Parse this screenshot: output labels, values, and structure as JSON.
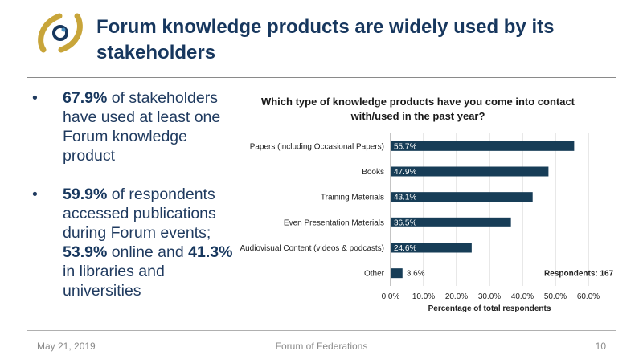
{
  "slide": {
    "title": "Forum knowledge products are widely used by its stakeholders"
  },
  "bullets": [
    {
      "bold": "67.9%",
      "text": " of stakeholders have used at least one Forum knowledge product"
    },
    {
      "bold1": "59.9%",
      "text1": " of respondents accessed publications during Forum events; ",
      "bold2": "53.9%",
      "text2": " online and ",
      "bold3": "41.3%",
      "text3": " in libraries and universities"
    }
  ],
  "footer": {
    "date": "May 21, 2019",
    "org": "Forum of Federations",
    "page": "10"
  },
  "colors": {
    "bar": "#173d57",
    "title": "#17375e",
    "logo_gold": "#c8a53a",
    "logo_navy": "#17375e"
  },
  "chart_data": {
    "type": "bar",
    "orientation": "horizontal",
    "title": "Which type of knowledge products have you come into contact with/used in the past year?",
    "categories": [
      "Papers (including Occasional Papers)",
      "Books",
      "Training Materials",
      "Even Presentation Materials",
      "Audiovisual Content (videos & podcasts)",
      "Other"
    ],
    "values": [
      55.7,
      47.9,
      43.1,
      36.5,
      24.6,
      3.6
    ],
    "data_labels": [
      "55.7%",
      "47.9%",
      "43.1%",
      "36.5%",
      "24.6%",
      "3.6%"
    ],
    "xlabel": "Percentage of total respondents",
    "xlim": [
      0,
      60
    ],
    "xticks": [
      "0.0%",
      "10.0%",
      "20.0%",
      "30.0%",
      "40.0%",
      "50.0%",
      "60.0%"
    ],
    "annotation": "Respondents: 167",
    "grid": true
  }
}
